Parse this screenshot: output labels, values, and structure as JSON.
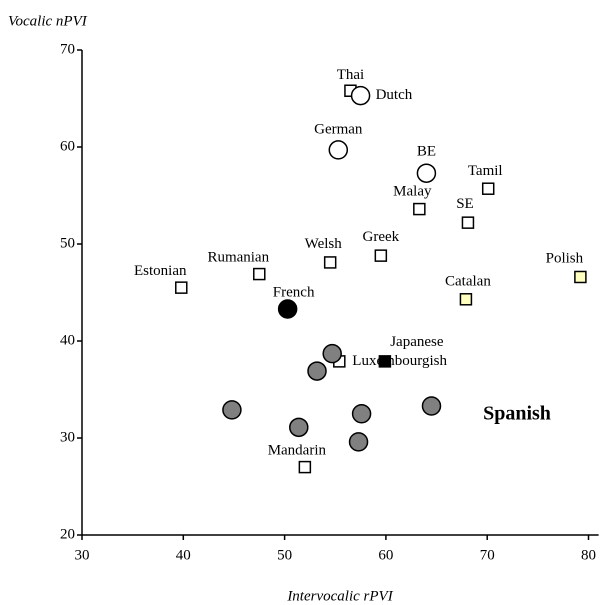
{
  "chart_data": {
    "type": "scatter",
    "ylabel": "Vocalic nPVI",
    "xlabel": "Intervocalic rPVI",
    "xlim": [
      30,
      81
    ],
    "ylim": [
      20,
      70
    ],
    "xticks": [
      30,
      40,
      50,
      60,
      70,
      80
    ],
    "yticks": [
      20,
      30,
      40,
      50,
      60,
      70
    ],
    "series": [
      {
        "name": "Thai",
        "shape": "square",
        "color": "#ffffff",
        "x": [
          56.5
        ],
        "y": [
          65.8
        ]
      },
      {
        "name": "Dutch",
        "shape": "circle",
        "color": "#ffffff",
        "x": [
          57.5
        ],
        "y": [
          65.3
        ]
      },
      {
        "name": "German",
        "shape": "circle",
        "color": "#ffffff",
        "x": [
          55.3
        ],
        "y": [
          59.7
        ]
      },
      {
        "name": "BE",
        "shape": "circle",
        "color": "#ffffff",
        "x": [
          64.0
        ],
        "y": [
          57.3
        ]
      },
      {
        "name": "Tamil",
        "shape": "square",
        "color": "#ffffff",
        "x": [
          70.1
        ],
        "y": [
          55.7
        ]
      },
      {
        "name": "Malay",
        "shape": "square",
        "color": "#ffffff",
        "x": [
          63.3
        ],
        "y": [
          53.6
        ]
      },
      {
        "name": "SE",
        "shape": "square",
        "color": "#ffffff",
        "x": [
          68.1
        ],
        "y": [
          52.2
        ]
      },
      {
        "name": "Greek",
        "shape": "square",
        "color": "#ffffff",
        "x": [
          59.5
        ],
        "y": [
          48.8
        ]
      },
      {
        "name": "Welsh",
        "shape": "square",
        "color": "#ffffff",
        "x": [
          54.5
        ],
        "y": [
          48.1
        ]
      },
      {
        "name": "Rumanian",
        "shape": "square",
        "color": "#ffffff",
        "x": [
          47.5
        ],
        "y": [
          46.9
        ]
      },
      {
        "name": "Estonian",
        "shape": "square",
        "color": "#ffffff",
        "x": [
          39.8
        ],
        "y": [
          45.5
        ]
      },
      {
        "name": "Polish",
        "shape": "square",
        "color": "#ffffc0",
        "x": [
          79.2
        ],
        "y": [
          46.6
        ]
      },
      {
        "name": "Catalan",
        "shape": "square",
        "color": "#ffffc0",
        "x": [
          67.9
        ],
        "y": [
          44.3
        ]
      },
      {
        "name": "French",
        "shape": "circle",
        "color": "#000000",
        "x": [
          50.3
        ],
        "y": [
          43.3
        ]
      },
      {
        "name": "Japanese",
        "shape": "square",
        "color": "#000000",
        "x": [
          59.9
        ],
        "y": [
          37.9
        ]
      },
      {
        "name": "Luxembourgish",
        "shape": "square",
        "color": "#ffffff",
        "x": [
          55.4
        ],
        "y": [
          37.9
        ]
      },
      {
        "name": "Mandarin",
        "shape": "square",
        "color": "#ffffff",
        "x": [
          52.0
        ],
        "y": [
          27.0
        ]
      },
      {
        "name": "Spanish",
        "shape": "circle",
        "color": "#808080",
        "x": [
          54.7,
          53.2,
          44.8,
          51.4,
          57.6,
          64.5,
          57.3
        ],
        "y": [
          38.7,
          36.9,
          32.9,
          31.1,
          32.5,
          33.3,
          29.6
        ]
      }
    ]
  }
}
